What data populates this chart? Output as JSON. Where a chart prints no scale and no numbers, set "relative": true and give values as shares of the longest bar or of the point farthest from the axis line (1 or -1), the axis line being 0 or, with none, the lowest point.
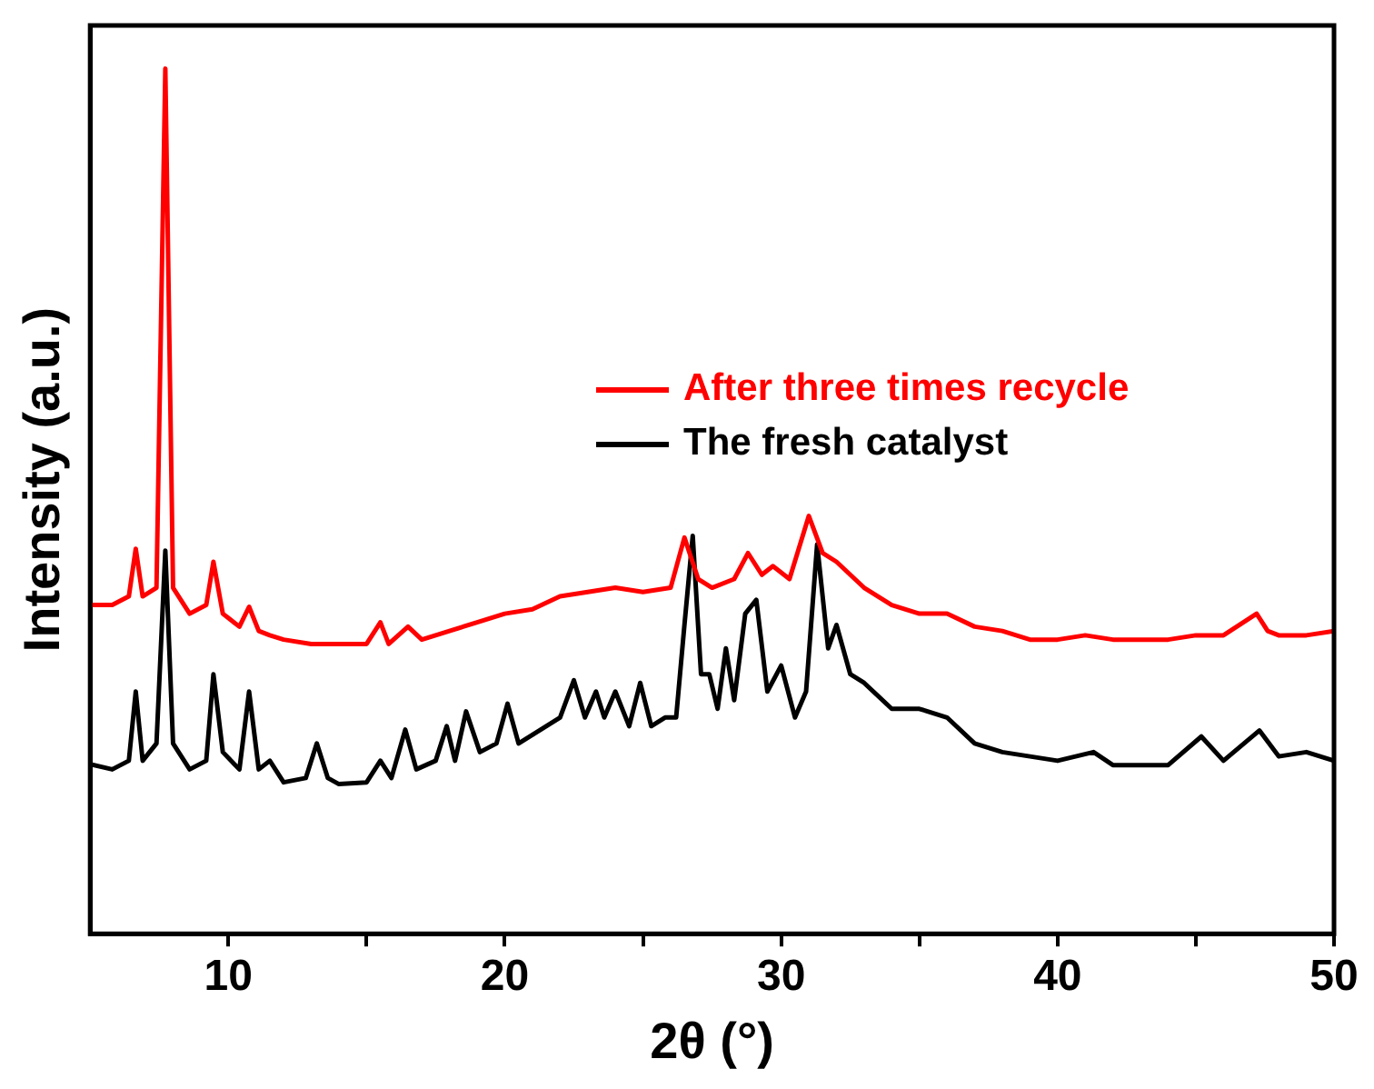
{
  "chart_data": {
    "type": "line",
    "xlabel": "2θ (°)",
    "ylabel": "Intensity (a.u.)",
    "relative": true,
    "xlim": [
      5,
      50
    ],
    "xticks": [
      10,
      {
        "value": 15,
        "label": null
      },
      20,
      {
        "value": 25,
        "label": null
      },
      30,
      {
        "value": 35,
        "label": null
      },
      40,
      {
        "value": 45,
        "label": null
      },
      50
    ],
    "tick_labels": "x",
    "grid": false,
    "legend": "right",
    "marker": "none",
    "line_style": "solid",
    "series": [
      {
        "name": "After three times recycle",
        "color": "#ff0000",
        "x": [
          5,
          5.8,
          6.4,
          6.65,
          6.9,
          7.4,
          7.72,
          8.0,
          8.6,
          9.2,
          9.46,
          9.8,
          10.4,
          10.75,
          11.1,
          11.5,
          12,
          13,
          14,
          15,
          15.5,
          15.8,
          16.5,
          17,
          18,
          19,
          20,
          21,
          22,
          23,
          24,
          25,
          26,
          26.5,
          27,
          27.5,
          28.3,
          28.8,
          29.3,
          29.7,
          30.3,
          31.0,
          31.5,
          32.0,
          33,
          34,
          35,
          36,
          37,
          38,
          39,
          40,
          41,
          42,
          43,
          44,
          45,
          46,
          47.2,
          47.6,
          48,
          49,
          50
        ],
        "values": [
          0.38,
          0.38,
          0.39,
          0.445,
          0.39,
          0.4,
          1,
          0.4,
          0.37,
          0.38,
          0.43,
          0.37,
          0.355,
          0.378,
          0.35,
          0.345,
          0.34,
          0.335,
          0.335,
          0.335,
          0.36,
          0.335,
          0.355,
          0.34,
          0.35,
          0.36,
          0.37,
          0.375,
          0.39,
          0.395,
          0.4,
          0.395,
          0.4,
          0.458,
          0.41,
          0.4,
          0.41,
          0.44,
          0.415,
          0.425,
          0.41,
          0.483,
          0.44,
          0.43,
          0.4,
          0.38,
          0.37,
          0.37,
          0.355,
          0.35,
          0.34,
          0.34,
          0.345,
          0.34,
          0.34,
          0.34,
          0.345,
          0.345,
          0.37,
          0.35,
          0.345,
          0.345,
          0.35
        ]
      },
      {
        "name": "The fresh catalyst",
        "color": "#000000",
        "x": [
          5,
          5.8,
          6.4,
          6.65,
          6.9,
          7.4,
          7.72,
          8.0,
          8.6,
          9.2,
          9.46,
          9.8,
          10.4,
          10.75,
          11.1,
          11.5,
          12,
          12.8,
          13.2,
          13.6,
          14,
          15,
          15.5,
          15.9,
          16.4,
          16.8,
          17.5,
          17.9,
          18.2,
          18.6,
          19.1,
          19.7,
          20.1,
          20.5,
          21,
          21.5,
          22,
          22.5,
          22.9,
          23.3,
          23.6,
          24.0,
          24.5,
          24.9,
          25.3,
          25.8,
          26.2,
          26.5,
          26.8,
          27.1,
          27.4,
          27.7,
          28.0,
          28.3,
          28.7,
          29.1,
          29.5,
          30.0,
          30.5,
          30.9,
          31.3,
          31.7,
          32.0,
          32.5,
          33,
          34,
          35,
          36,
          37,
          38,
          39,
          40,
          41.3,
          42,
          43,
          44,
          45.2,
          46,
          47.3,
          48,
          49,
          50
        ],
        "values": [
          0.196,
          0.19,
          0.2,
          0.28,
          0.2,
          0.22,
          0.443,
          0.22,
          0.19,
          0.2,
          0.3,
          0.21,
          0.19,
          0.28,
          0.19,
          0.2,
          0.175,
          0.18,
          0.22,
          0.18,
          0.173,
          0.175,
          0.2,
          0.18,
          0.236,
          0.19,
          0.2,
          0.24,
          0.2,
          0.257,
          0.21,
          0.22,
          0.266,
          0.22,
          0.23,
          0.24,
          0.25,
          0.293,
          0.25,
          0.28,
          0.25,
          0.28,
          0.24,
          0.29,
          0.24,
          0.25,
          0.25,
          0.357,
          0.46,
          0.3,
          0.3,
          0.26,
          0.33,
          0.27,
          0.37,
          0.386,
          0.28,
          0.31,
          0.25,
          0.28,
          0.45,
          0.33,
          0.357,
          0.3,
          0.29,
          0.26,
          0.26,
          0.25,
          0.22,
          0.21,
          0.205,
          0.2,
          0.21,
          0.195,
          0.195,
          0.195,
          0.228,
          0.2,
          0.235,
          0.205,
          0.21,
          0.2
        ]
      }
    ]
  }
}
